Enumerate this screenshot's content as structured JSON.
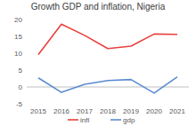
{
  "chart_data": {
    "type": "line",
    "title": "Growth GDP and inflation, Nigeria",
    "categories": [
      "2015",
      "2016",
      "2017",
      "2018",
      "2019",
      "2020",
      "2021"
    ],
    "series": [
      {
        "name": "infl",
        "color": "#e8413c",
        "values": [
          9.6,
          18.6,
          15.3,
          11.4,
          12.1,
          15.7,
          15.6
        ]
      },
      {
        "name": "gdp",
        "color": "#5b8bd0",
        "values": [
          2.7,
          -1.6,
          0.8,
          1.9,
          2.2,
          -1.8,
          3.0
        ]
      }
    ],
    "ylim": [
      -5,
      20
    ],
    "yticks": [
      -5,
      0,
      5,
      10,
      15,
      20
    ],
    "grid": false,
    "legend": "bottom"
  }
}
